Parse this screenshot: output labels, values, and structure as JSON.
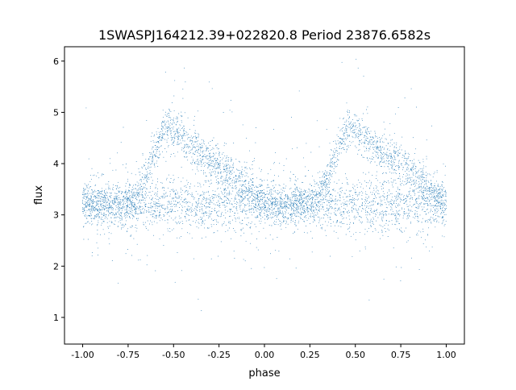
{
  "chart_data": {
    "type": "scatter",
    "title": "1SWASPJ164212.39+022820.8 Period 23876.6582s",
    "xlabel": "phase",
    "ylabel": "flux",
    "xlim": [
      -1.1,
      1.1
    ],
    "ylim": [
      0.48,
      6.28
    ],
    "grid": false,
    "x_ticks": [
      "-1.00",
      "-0.75",
      "-0.50",
      "-0.25",
      "0.00",
      "0.25",
      "0.50",
      "0.75",
      "1.00"
    ],
    "y_ticks": [
      "1",
      "2",
      "3",
      "4",
      "5",
      "6"
    ],
    "point_color": "#1f77b4",
    "series": [
      {
        "description_values": "representative trend of the upper (eclipsing) branch, repeating with period 1 in phase",
        "x": [
          -1.0,
          -0.9,
          -0.8,
          -0.72,
          -0.68,
          -0.64,
          -0.6,
          -0.56,
          -0.52,
          -0.48,
          -0.44,
          -0.4,
          -0.35,
          -0.3,
          -0.25,
          -0.2,
          -0.15,
          -0.1,
          -0.05,
          0.0
        ],
        "y": [
          3.2,
          3.2,
          3.2,
          3.25,
          3.5,
          3.9,
          4.3,
          4.6,
          4.7,
          4.6,
          4.45,
          4.35,
          4.2,
          4.1,
          4.0,
          3.85,
          3.7,
          3.55,
          3.4,
          3.3
        ]
      },
      {
        "x": [
          -1.0,
          0.0,
          1.0
        ],
        "y": [
          3.2,
          3.2,
          3.2
        ]
      }
    ]
  }
}
